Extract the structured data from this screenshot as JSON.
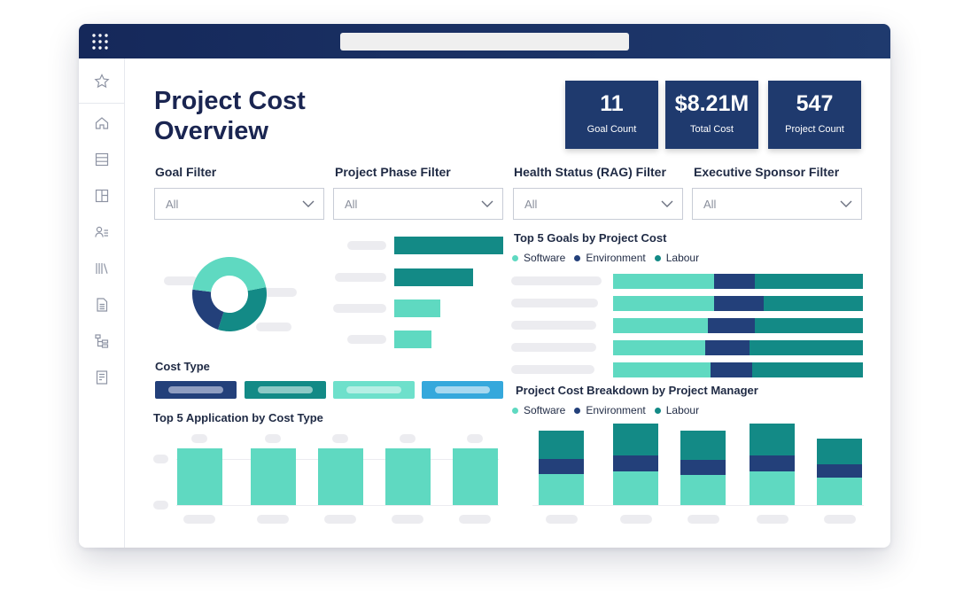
{
  "header": {
    "title": "Project Cost Overview"
  },
  "kpis": [
    {
      "value": "11",
      "label": "Goal Count"
    },
    {
      "value": "$8.21M",
      "label": "Total Cost"
    },
    {
      "value": "547",
      "label": "Project Count"
    }
  ],
  "filters": [
    {
      "label": "Goal Filter",
      "value": "All"
    },
    {
      "label": "Project Phase Filter",
      "value": "All"
    },
    {
      "label": "Health Status (RAG) Filter",
      "value": "All"
    },
    {
      "label": "Executive Sponsor Filter",
      "value": "All"
    }
  ],
  "sections": {
    "cost_type": "Cost Type",
    "top5_app": "Top 5 Application by Cost Type",
    "top5_goals": "Top 5 Goals by Project Cost",
    "breakdown": "Project Cost Breakdown by Project Manager"
  },
  "legend": [
    "Software",
    "Environment",
    "Labour"
  ],
  "colors": {
    "software": "#5fd9c1",
    "environment": "#23407a",
    "labour": "#138a86",
    "navy": "#1f3a6e"
  },
  "sidebar_icons": [
    "star-icon",
    "home-icon",
    "table-icon",
    "layout-icon",
    "users-icon",
    "library-icon",
    "document-icon",
    "hierarchy-icon",
    "report-icon"
  ],
  "chart_data": [
    {
      "type": "pie",
      "values": [
        45,
        22,
        33
      ],
      "title": ""
    },
    {
      "type": "bar",
      "values": [
        123,
        89,
        52,
        42
      ],
      "title": ""
    },
    {
      "type": "bar",
      "title": "Top 5 Goals by Project Cost",
      "series": [
        {
          "name": "Software",
          "values": [
            114,
            114,
            107,
            104,
            110
          ]
        },
        {
          "name": "Environment",
          "values": [
            46,
            56,
            53,
            50,
            47
          ]
        },
        {
          "name": "Labour",
          "values": [
            122,
            112,
            122,
            128,
            125
          ]
        }
      ]
    },
    {
      "type": "bar",
      "title": "Top 5 Application by Cost Type",
      "values": [
        64,
        64,
        64,
        64,
        64
      ]
    },
    {
      "type": "bar",
      "title": "Project Cost Breakdown by Project Manager",
      "series": [
        {
          "name": "Software",
          "values": [
            35,
            38,
            34,
            38,
            31
          ]
        },
        {
          "name": "Environment",
          "values": [
            17,
            18,
            17,
            18,
            15
          ]
        },
        {
          "name": "Labour",
          "values": [
            32,
            36,
            33,
            36,
            29
          ]
        }
      ]
    }
  ]
}
